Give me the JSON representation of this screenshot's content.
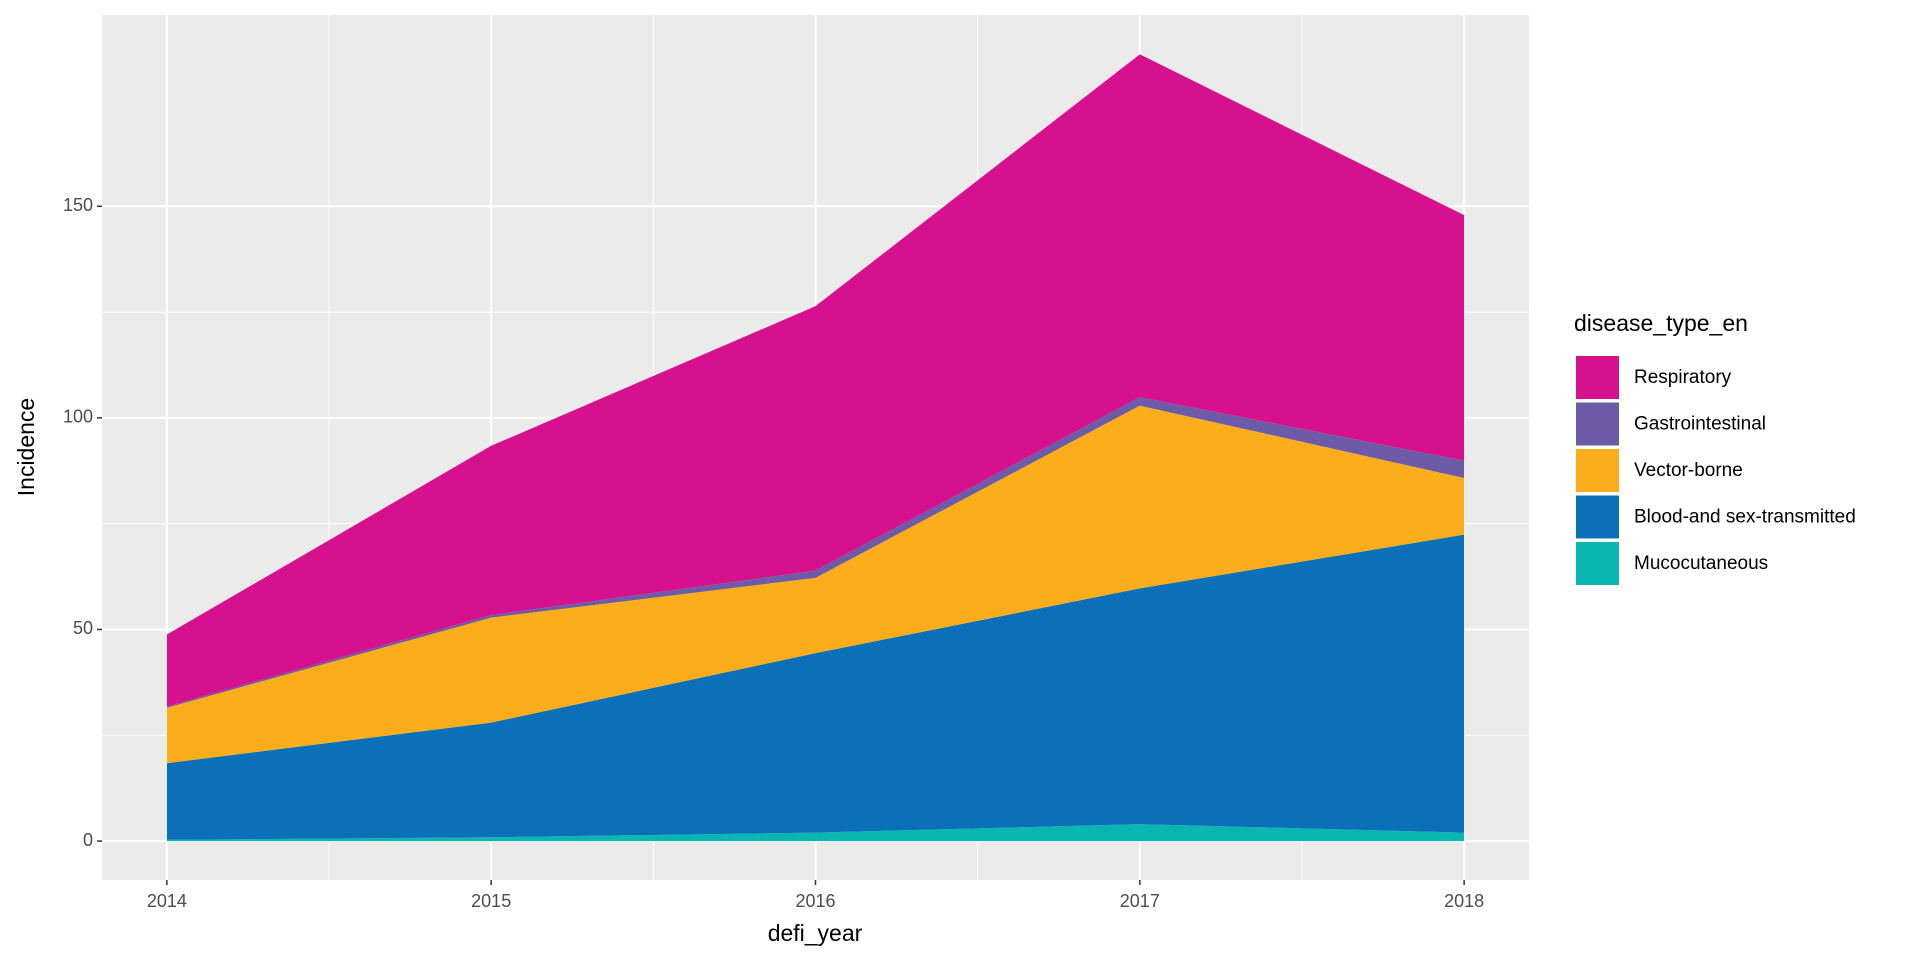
{
  "chart_data": {
    "type": "stacked_area",
    "x_label": "defi_year",
    "y_label": "Incidence",
    "legend_title": "disease_type_en",
    "legend_position": "right",
    "grid": true,
    "x": [
      2014,
      2015,
      2016,
      2017,
      2018
    ],
    "xlim": [
      2013.8,
      2018.2
    ],
    "xticks": [
      2014,
      2015,
      2016,
      2017,
      2018
    ],
    "ylim": [
      -9.2,
      195.2
    ],
    "yticks": [
      0,
      50,
      100,
      150
    ],
    "series": [
      {
        "name": "Respiratory",
        "color": "#d5118d",
        "values": [
          17,
          40,
          62.5,
          81,
          58
        ]
      },
      {
        "name": "Gastrointestinal",
        "color": "#6e5ba8",
        "values": [
          0.3,
          0.6,
          1.7,
          2,
          4.1
        ]
      },
      {
        "name": "Vector-borne",
        "color": "#fbad1b",
        "values": [
          13.1,
          24.8,
          17.8,
          43.2,
          13.4
        ]
      },
      {
        "name": "Blood-and sex-transmitted",
        "color": "#0b70b8",
        "values": [
          18.1,
          27.1,
          42.4,
          55.7,
          70.4
        ]
      },
      {
        "name": "Mucocutaneous",
        "color": "#0bb5b1",
        "values": [
          0.3,
          0.9,
          2,
          4,
          2
        ]
      }
    ]
  }
}
